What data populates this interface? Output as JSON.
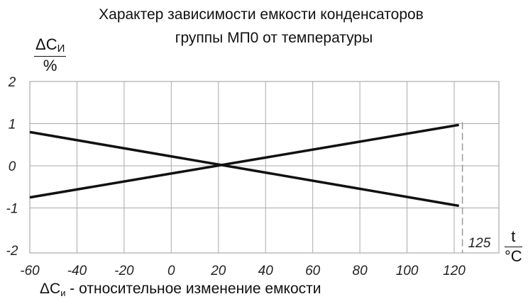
{
  "chart_data": {
    "type": "line",
    "title_line1": "Характер зависимости емкости конденсаторов",
    "title_line2": "группы МП0 от температуры",
    "ylabel_num_main": "ΔC",
    "ylabel_num_sub": "И",
    "ylabel_den": "%",
    "xlabel_num": "t",
    "xlabel_den": "°C",
    "xticks": [
      -60,
      -40,
      -20,
      0,
      20,
      40,
      60,
      80,
      100,
      120
    ],
    "yticks": [
      2,
      1,
      0,
      -1,
      -2
    ],
    "xlim": [
      -60,
      125
    ],
    "ylim": [
      -2,
      2
    ],
    "grid": true,
    "series": [
      {
        "x": [
          -60,
          122
        ],
        "y": [
          0.8,
          -0.95
        ]
      },
      {
        "x": [
          -60,
          122
        ],
        "y": [
          -0.75,
          0.97
        ]
      }
    ],
    "marker": {
      "x": 125,
      "label": "125",
      "style": "dashed"
    }
  },
  "note": {
    "symbol": "ΔC",
    "sub": "и",
    "text": " - относительное изменение емкости"
  }
}
